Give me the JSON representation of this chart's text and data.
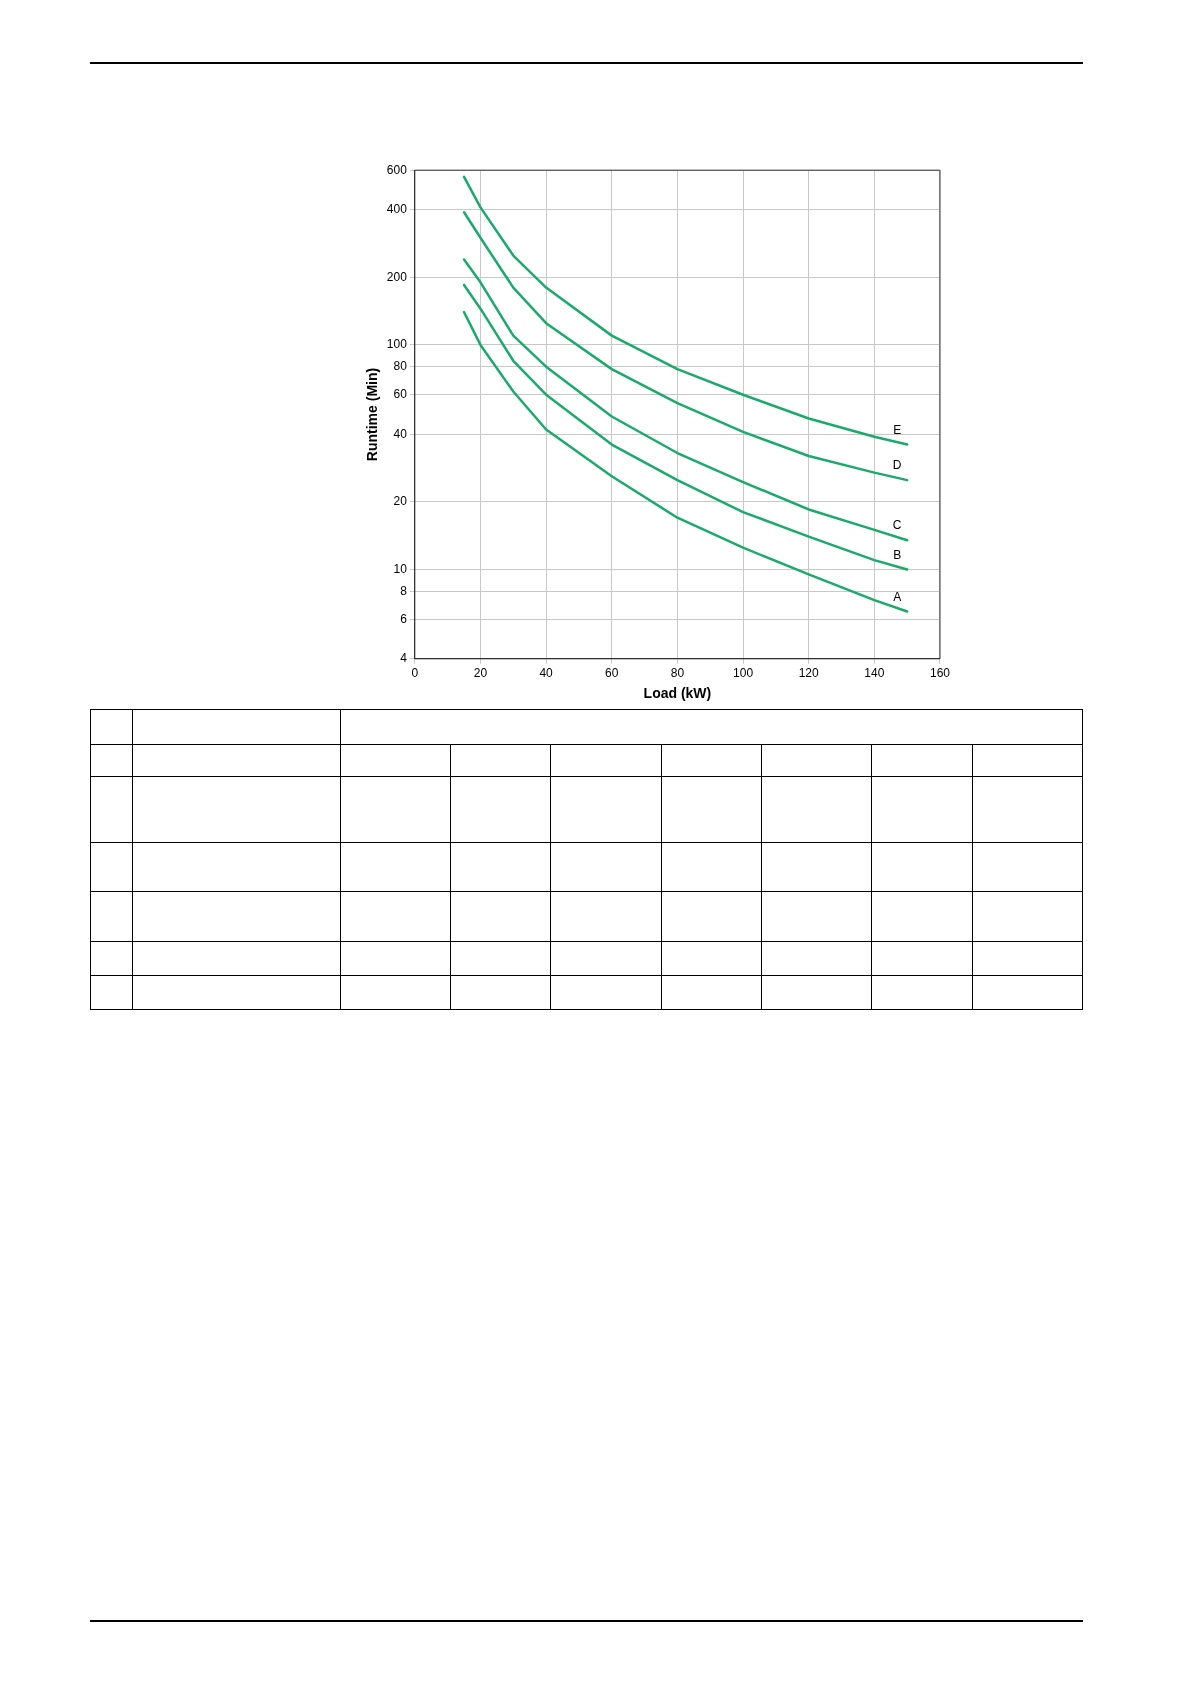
{
  "chart_data": {
    "type": "line",
    "xlabel": "Load (kW)",
    "ylabel": "Runtime (Min)",
    "log": "y",
    "grid": true,
    "legend": false,
    "marker": "none",
    "line_style": "solid",
    "x": [
      15,
      20,
      30,
      40,
      60,
      80,
      100,
      120,
      140,
      150
    ],
    "xlim": [
      0,
      160
    ],
    "xticks": [
      0,
      20,
      40,
      60,
      80,
      100,
      120,
      140,
      160
    ],
    "ylim": [
      4,
      600
    ],
    "yticks": [
      4,
      6,
      8,
      10,
      20,
      40,
      60,
      80,
      100,
      200,
      400,
      600
    ],
    "series": [
      {
        "name": "A",
        "color": "#1aab6a",
        "values": [
          140,
          100,
          62,
          42,
          26,
          17,
          12.5,
          9.5,
          7.3,
          6.5
        ]
      },
      {
        "name": "B",
        "color": "#1aab6a",
        "values": [
          185,
          145,
          85,
          60,
          36,
          25,
          18,
          14,
          11,
          10
        ]
      },
      {
        "name": "C",
        "color": "#1aab6a",
        "values": [
          240,
          190,
          110,
          80,
          48,
          33,
          24.5,
          18.5,
          15,
          13.5
        ]
      },
      {
        "name": "D",
        "color": "#1aab6a",
        "values": [
          390,
          300,
          180,
          125,
          78,
          55,
          41,
          32,
          27,
          25
        ]
      },
      {
        "name": "E",
        "color": "#1aab6a",
        "values": [
          560,
          410,
          250,
          180,
          110,
          78,
          60,
          47,
          39,
          36
        ]
      }
    ]
  }
}
